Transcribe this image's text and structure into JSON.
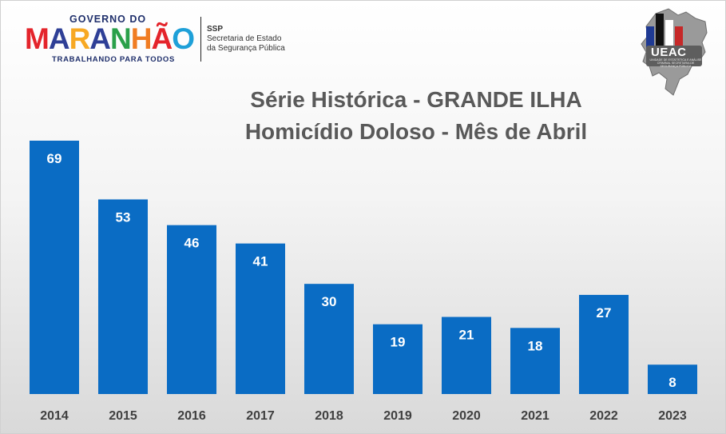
{
  "logos": {
    "governo": {
      "top_text": "GOVERNO DO",
      "word": "MARANHÃO",
      "tagline": "TRABALHANDO PARA TODOS",
      "letter_colors": [
        "#e4242b",
        "#2e3f96",
        "#f7a823",
        "#2e3f96",
        "#2aa04a",
        "#f07c22",
        "#e4242b",
        "#1ea0d8"
      ]
    },
    "ssp": {
      "abbr": "SSP",
      "line1": "Secretaria de Estado",
      "line2": "da Segurança Pública"
    },
    "ueac": {
      "name": "UEAC",
      "subtitle": "UNIDADE DE ESTATÍSTICA E ANÁLISE CRIMINAL SECRETARIA DE SEGURANÇA PÚBLICA"
    }
  },
  "chart_data": {
    "type": "bar",
    "title_line1": "Série Histórica - GRANDE ILHA",
    "title_line2": "Homicídio Doloso - Mês de Abril",
    "categories": [
      "2014",
      "2015",
      "2016",
      "2017",
      "2018",
      "2019",
      "2020",
      "2021",
      "2022",
      "2023"
    ],
    "values": [
      69,
      53,
      46,
      41,
      30,
      19,
      21,
      18,
      27,
      8
    ],
    "xlabel": "",
    "ylabel": "",
    "ylim": [
      0,
      69
    ],
    "grid": false,
    "legend": "none",
    "bar_color": "#0a6cc4",
    "data_labels": "inside-top"
  }
}
